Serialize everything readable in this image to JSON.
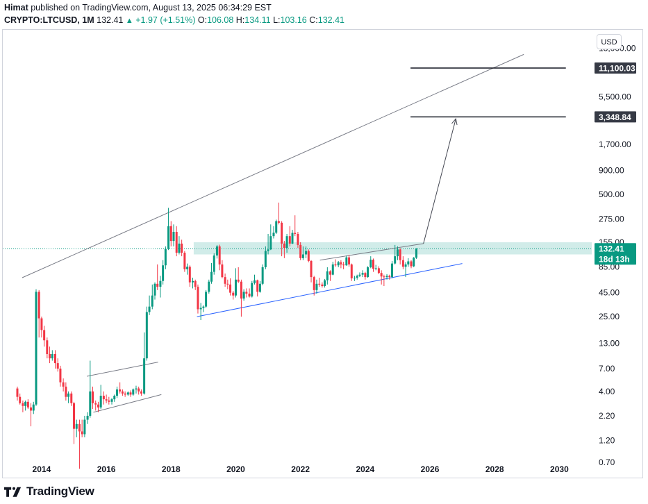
{
  "header": {
    "author": "Himat",
    "published_text": "published on TradingView.com, August 13, 2025 06:34:29 EST",
    "symbol": "CRYPTO:LTCUSD, 1M",
    "last": "132.41",
    "change": "+1.97 (+1.51%)",
    "o_label": "O:",
    "o_value": "106.08",
    "h_label": "H:",
    "h_value": "134.11",
    "l_label": "L:",
    "l_value": "103.16",
    "c_label": "C:",
    "c_value": "132.41"
  },
  "currency_button": "USD",
  "footer": {
    "brand": "TradingView"
  },
  "colors": {
    "up": "#089981",
    "down": "#f23645",
    "trend": "#2962ff",
    "zone": "#b2dfdb"
  },
  "chart_data": {
    "type": "candlestick",
    "title": "",
    "y_scale": "log",
    "ylim": [
      0.5,
      26000
    ],
    "xlim": [
      2012.8,
      2031.0
    ],
    "x_ticks": [
      "2014",
      "2016",
      "2018",
      "2020",
      "2022",
      "2024",
      "2026",
      "2028",
      "2030"
    ],
    "y_ticks": [
      "18,000.00",
      "11,100.03",
      "5,500.00",
      "3,348.84",
      "1,700.00",
      "900.00",
      "500.00",
      "275.00",
      "155.00",
      "132.41",
      "85.00",
      "45.00",
      "25.00",
      "13.00",
      "7.00",
      "4.00",
      "2.20",
      "1.20",
      "0.70"
    ],
    "price_labels": [
      {
        "text": "11,100.03",
        "style": "dark"
      },
      {
        "text": "3,348.84",
        "style": "dark"
      },
      {
        "text": "132.41",
        "style": "green"
      },
      {
        "text": "18d 13h",
        "style": "green"
      }
    ],
    "last_price": 132.41,
    "resistance_zone": [
      115,
      155
    ],
    "target_levels": [
      {
        "price": 11100.03,
        "x_start": 2025.4,
        "x_end": 2030.2
      },
      {
        "price": 3348.84,
        "x_start": 2025.4,
        "x_end": 2030.2
      }
    ],
    "trendlines": [
      {
        "name": "upper channel",
        "from": [
          2013.4,
          65
        ],
        "to": [
          2028.9,
          15500
        ]
      },
      {
        "name": "rising support",
        "from": [
          2018.8,
          25
        ],
        "to": [
          2027.0,
          92
        ]
      },
      {
        "name": "triangle top",
        "from": [
          2022.6,
          100
        ],
        "to": [
          2025.8,
          150
        ]
      },
      {
        "name": "early range top",
        "from": [
          2015.4,
          5.8
        ],
        "to": [
          2017.6,
          8.2
        ]
      },
      {
        "name": "early range bottom",
        "from": [
          2015.6,
          2.4
        ],
        "to": [
          2017.7,
          3.7
        ]
      }
    ],
    "projection": [
      [
        2025.8,
        150
      ],
      [
        2026.8,
        3200
      ]
    ],
    "candles": [
      [
        2013.25,
        4.3,
        4.5,
        3.2,
        3.5
      ],
      [
        2013.33,
        3.5,
        3.8,
        2.9,
        3.0
      ],
      [
        2013.42,
        3.0,
        3.2,
        2.4,
        2.8
      ],
      [
        2013.5,
        2.8,
        3.2,
        2.5,
        3.1
      ],
      [
        2013.58,
        3.1,
        3.3,
        2.6,
        2.7
      ],
      [
        2013.67,
        2.7,
        3.0,
        1.7,
        2.5
      ],
      [
        2013.75,
        2.5,
        3.1,
        2.3,
        2.9
      ],
      [
        2013.83,
        2.9,
        49,
        2.8,
        46
      ],
      [
        2013.92,
        46,
        48,
        15,
        24
      ],
      [
        2014.0,
        24,
        25,
        15,
        18
      ],
      [
        2014.08,
        18,
        20,
        12,
        14
      ],
      [
        2014.17,
        14,
        15,
        9,
        10
      ],
      [
        2014.25,
        10,
        12,
        8,
        9
      ],
      [
        2014.33,
        9,
        11,
        8.5,
        10
      ],
      [
        2014.42,
        10,
        11,
        7,
        8
      ],
      [
        2014.5,
        8,
        9,
        6.5,
        7
      ],
      [
        2014.58,
        7,
        7.5,
        4.5,
        5
      ],
      [
        2014.67,
        5,
        5.5,
        4,
        4.5
      ],
      [
        2014.75,
        4.5,
        5,
        3.2,
        3.5
      ],
      [
        2014.83,
        3.5,
        4.0,
        3.0,
        3.8
      ],
      [
        2014.92,
        3.8,
        4.0,
        2.8,
        3.0
      ],
      [
        2015.0,
        3.0,
        3.1,
        1.1,
        1.6
      ],
      [
        2015.08,
        1.6,
        2.0,
        1.3,
        1.8
      ],
      [
        2015.17,
        1.8,
        2.0,
        0.6,
        1.5
      ],
      [
        2015.25,
        1.5,
        2.0,
        1.3,
        1.4
      ],
      [
        2015.33,
        1.4,
        2.2,
        1.3,
        2.0
      ],
      [
        2015.42,
        2.0,
        2.4,
        1.8,
        2.2
      ],
      [
        2015.5,
        2.2,
        8.5,
        2.1,
        4.0
      ],
      [
        2015.58,
        4.0,
        4.5,
        2.6,
        3.0
      ],
      [
        2015.67,
        3.0,
        3.2,
        2.5,
        2.9
      ],
      [
        2015.75,
        2.9,
        3.1,
        2.4,
        2.7
      ],
      [
        2015.83,
        2.7,
        4.7,
        2.6,
        3.6
      ],
      [
        2015.92,
        3.6,
        4.0,
        2.9,
        3.3
      ],
      [
        2016.0,
        3.3,
        3.7,
        3.0,
        3.2
      ],
      [
        2016.08,
        3.2,
        3.5,
        2.9,
        3.1
      ],
      [
        2016.17,
        3.1,
        3.4,
        2.9,
        3.3
      ],
      [
        2016.25,
        3.3,
        3.7,
        3.1,
        3.6
      ],
      [
        2016.33,
        3.6,
        4.5,
        3.4,
        4.2
      ],
      [
        2016.42,
        4.2,
        5.0,
        3.8,
        4.0
      ],
      [
        2016.5,
        4.0,
        4.2,
        3.6,
        3.8
      ],
      [
        2016.58,
        3.8,
        4.0,
        3.5,
        3.7
      ],
      [
        2016.67,
        3.7,
        4.0,
        3.6,
        3.9
      ],
      [
        2016.75,
        3.9,
        4.1,
        3.5,
        3.7
      ],
      [
        2016.83,
        3.7,
        4.3,
        3.6,
        4.2
      ],
      [
        2016.92,
        4.2,
        4.6,
        3.8,
        4.3
      ],
      [
        2017.0,
        4.3,
        4.5,
        3.7,
        4.0
      ],
      [
        2017.08,
        4.0,
        4.2,
        3.6,
        3.8
      ],
      [
        2017.17,
        3.8,
        17,
        3.7,
        9
      ],
      [
        2017.25,
        9,
        32,
        8.5,
        28
      ],
      [
        2017.33,
        28,
        42,
        26,
        32
      ],
      [
        2017.42,
        32,
        55,
        30,
        42
      ],
      [
        2017.5,
        42,
        58,
        38,
        56
      ],
      [
        2017.58,
        56,
        90,
        48,
        52
      ],
      [
        2017.67,
        52,
        68,
        40,
        60
      ],
      [
        2017.75,
        60,
        100,
        55,
        88
      ],
      [
        2017.83,
        88,
        140,
        80,
        132
      ],
      [
        2017.92,
        132,
        360,
        128,
        230
      ],
      [
        2018.0,
        230,
        260,
        140,
        160
      ],
      [
        2018.08,
        160,
        240,
        140,
        200
      ],
      [
        2018.17,
        200,
        230,
        110,
        120
      ],
      [
        2018.25,
        120,
        180,
        115,
        150
      ],
      [
        2018.33,
        150,
        165,
        110,
        120
      ],
      [
        2018.42,
        120,
        125,
        75,
        80
      ],
      [
        2018.5,
        80,
        92,
        70,
        85
      ],
      [
        2018.58,
        85,
        88,
        52,
        58
      ],
      [
        2018.67,
        58,
        65,
        50,
        60
      ],
      [
        2018.75,
        60,
        62,
        48,
        52
      ],
      [
        2018.83,
        52,
        55,
        27,
        30
      ],
      [
        2018.92,
        30,
        35,
        23,
        31
      ],
      [
        2019.0,
        31,
        33,
        28,
        32
      ],
      [
        2019.08,
        32,
        48,
        31,
        46
      ],
      [
        2019.17,
        46,
        62,
        44,
        59
      ],
      [
        2019.25,
        59,
        93,
        56,
        75
      ],
      [
        2019.33,
        75,
        118,
        70,
        112
      ],
      [
        2019.42,
        112,
        145,
        104,
        140
      ],
      [
        2019.5,
        140,
        146,
        78,
        90
      ],
      [
        2019.58,
        90,
        100,
        64,
        66
      ],
      [
        2019.67,
        66,
        72,
        52,
        56
      ],
      [
        2019.75,
        56,
        62,
        49,
        55
      ],
      [
        2019.83,
        55,
        64,
        42,
        45
      ],
      [
        2019.92,
        45,
        47,
        38,
        42
      ],
      [
        2020.0,
        42,
        82,
        40,
        62
      ],
      [
        2020.08,
        62,
        84,
        57,
        59
      ],
      [
        2020.17,
        59,
        62,
        25,
        39
      ],
      [
        2020.25,
        39,
        49,
        37,
        46
      ],
      [
        2020.33,
        46,
        50,
        40,
        44
      ],
      [
        2020.42,
        44,
        50,
        40,
        41
      ],
      [
        2020.5,
        41,
        60,
        40,
        57
      ],
      [
        2020.58,
        57,
        70,
        55,
        61
      ],
      [
        2020.67,
        61,
        62,
        41,
        46
      ],
      [
        2020.75,
        46,
        60,
        45,
        56
      ],
      [
        2020.83,
        56,
        90,
        54,
        84
      ],
      [
        2020.92,
        84,
        140,
        80,
        125
      ],
      [
        2021.0,
        125,
        190,
        115,
        130
      ],
      [
        2021.08,
        130,
        240,
        128,
        180
      ],
      [
        2021.17,
        180,
        230,
        170,
        196
      ],
      [
        2021.25,
        196,
        270,
        190,
        260
      ],
      [
        2021.33,
        260,
        410,
        240,
        250
      ],
      [
        2021.42,
        250,
        260,
        110,
        150
      ],
      [
        2021.5,
        150,
        160,
        105,
        135
      ],
      [
        2021.58,
        135,
        190,
        120,
        180
      ],
      [
        2021.67,
        180,
        230,
        140,
        150
      ],
      [
        2021.75,
        150,
        210,
        148,
        195
      ],
      [
        2021.83,
        195,
        300,
        180,
        190
      ],
      [
        2021.92,
        190,
        200,
        135,
        145
      ],
      [
        2022.0,
        145,
        155,
        100,
        105
      ],
      [
        2022.08,
        105,
        140,
        100,
        115
      ],
      [
        2022.17,
        115,
        140,
        105,
        125
      ],
      [
        2022.25,
        125,
        130,
        95,
        98
      ],
      [
        2022.33,
        98,
        100,
        58,
        66
      ],
      [
        2022.42,
        66,
        68,
        42,
        48
      ],
      [
        2022.5,
        48,
        62,
        44,
        56
      ],
      [
        2022.58,
        56,
        65,
        52,
        55
      ],
      [
        2022.67,
        55,
        58,
        51,
        53
      ],
      [
        2022.75,
        53,
        63,
        51,
        61
      ],
      [
        2022.83,
        61,
        84,
        55,
        76
      ],
      [
        2022.92,
        76,
        78,
        60,
        70
      ],
      [
        2023.0,
        70,
        96,
        69,
        90
      ],
      [
        2023.08,
        90,
        102,
        85,
        88
      ],
      [
        2023.17,
        88,
        98,
        84,
        95
      ],
      [
        2023.25,
        95,
        100,
        82,
        90
      ],
      [
        2023.33,
        90,
        96,
        80,
        88
      ],
      [
        2023.42,
        88,
        112,
        87,
        107
      ],
      [
        2023.5,
        107,
        114,
        85,
        90
      ],
      [
        2023.58,
        90,
        92,
        60,
        64
      ],
      [
        2023.67,
        64,
        68,
        60,
        65
      ],
      [
        2023.75,
        65,
        70,
        62,
        68
      ],
      [
        2023.83,
        68,
        74,
        66,
        70
      ],
      [
        2023.92,
        70,
        78,
        66,
        73
      ],
      [
        2024.0,
        73,
        75,
        62,
        66
      ],
      [
        2024.08,
        66,
        86,
        65,
        84
      ],
      [
        2024.17,
        84,
        110,
        82,
        101
      ],
      [
        2024.25,
        101,
        104,
        75,
        81
      ],
      [
        2024.33,
        81,
        89,
        78,
        82
      ],
      [
        2024.42,
        82,
        86,
        71,
        73
      ],
      [
        2024.5,
        73,
        78,
        55,
        67
      ],
      [
        2024.58,
        67,
        70,
        53,
        66
      ],
      [
        2024.67,
        66,
        71,
        62,
        68
      ],
      [
        2024.75,
        68,
        70,
        62,
        66
      ],
      [
        2024.83,
        66,
        98,
        64,
        92
      ],
      [
        2024.92,
        92,
        145,
        90,
        110
      ],
      [
        2025.0,
        110,
        140,
        100,
        130
      ],
      [
        2025.08,
        130,
        134,
        90,
        100
      ],
      [
        2025.17,
        100,
        110,
        80,
        85
      ],
      [
        2025.25,
        85,
        95,
        66,
        90
      ],
      [
        2025.33,
        90,
        105,
        85,
        97
      ],
      [
        2025.42,
        97,
        100,
        82,
        86
      ],
      [
        2025.5,
        86,
        108,
        84,
        106
      ],
      [
        2025.58,
        106.08,
        134.11,
        103.16,
        132.41
      ]
    ]
  }
}
